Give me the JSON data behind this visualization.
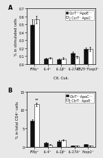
{
  "panel_A": {
    "title": "A",
    "ylabel": "% in stimulated cells",
    "xlabel": "Cit. Cuk.",
    "ylim": [
      0,
      0.7
    ],
    "yticks": [
      0.0,
      0.1,
      0.2,
      0.3,
      0.4,
      0.5,
      0.6,
      0.7
    ],
    "categories": [
      "IFNγ⁺",
      "IL-4⁺",
      "IL-1β⁺",
      "IL-17A⁺",
      "CB25⁺Foxp3⁺"
    ],
    "black_values": [
      0.49,
      0.065,
      0.06,
      0.135,
      0.19
    ],
    "white_values": [
      0.56,
      0.075,
      0.07,
      0.09,
      0.19
    ],
    "black_errors": [
      0.07,
      0.01,
      0.01,
      0.02,
      0.02
    ],
    "white_errors": [
      0.05,
      0.01,
      0.01,
      0.015,
      0.025
    ],
    "legend_black": "CcrT⁺⁺ApoE⁻⁻",
    "legend_white": "| CcrT⁻ ApsC⁻"
  },
  "panel_B": {
    "title": "B",
    "ylabel": "% in total CD4⁺ cells",
    "xlabel": "",
    "ylim": [
      0,
      15
    ],
    "yticks": [
      0,
      5,
      10,
      15
    ],
    "categories": [
      "IFNγ⁺",
      "IL-4⁺",
      "IL-1β⁺",
      "IL-17A⁺",
      "Foxp1⁺"
    ],
    "black_values": [
      7.0,
      1.1,
      1.5,
      0.35,
      0.7
    ],
    "white_values": [
      11.5,
      0.6,
      1.8,
      0.3,
      0.3
    ],
    "black_errors": [
      0.5,
      0.15,
      0.3,
      0.08,
      0.1
    ],
    "white_errors": [
      0.5,
      0.1,
      0.2,
      0.07,
      0.05
    ],
    "legend_black": "CtrT⁺⁻ApoC⁻⁻",
    "legend_white": "| CtrT⁻ ApoE⁻"
  },
  "bar_width": 0.32,
  "black_color": "#111111",
  "white_color": "#ffffff",
  "edge_color": "#111111",
  "bg_color": "#e8e8e8",
  "font_size": 5.0,
  "tick_font_size": 3.5,
  "label_font_size": 3.8,
  "legend_font_size": 3.5
}
